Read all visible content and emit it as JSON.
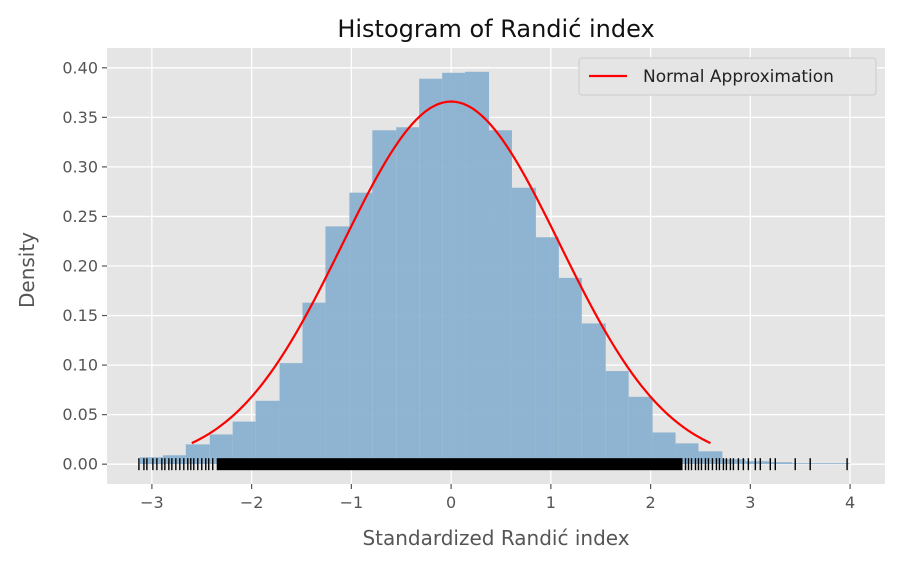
{
  "chart_data": {
    "type": "bar",
    "title": "Histogram of Randić index",
    "xlabel": "Standardized Randić index",
    "ylabel": "Density",
    "xlim": [
      -3.45,
      4.35
    ],
    "ylim": [
      -0.02,
      0.42
    ],
    "x_ticks": [
      -3,
      -2,
      -1,
      0,
      1,
      2,
      3,
      4
    ],
    "x_tick_labels": [
      "−3",
      "−2",
      "−1",
      "0",
      "1",
      "2",
      "3",
      "4"
    ],
    "y_ticks": [
      0.0,
      0.05,
      0.1,
      0.15,
      0.2,
      0.25,
      0.3,
      0.35,
      0.4
    ],
    "y_tick_labels": [
      "0.00",
      "0.05",
      "0.10",
      "0.15",
      "0.20",
      "0.25",
      "0.30",
      "0.35",
      "0.40"
    ],
    "grid": true,
    "legend": {
      "placement": "top-right",
      "entries": [
        "Normal Approximation"
      ]
    },
    "histogram": {
      "name": "",
      "color": "#8ab1d0",
      "bins": [
        {
          "x0": -3.12,
          "x1": -2.89,
          "density": 0.007
        },
        {
          "x0": -2.89,
          "x1": -2.66,
          "density": 0.009
        },
        {
          "x0": -2.66,
          "x1": -2.42,
          "density": 0.02
        },
        {
          "x0": -2.42,
          "x1": -2.19,
          "density": 0.03
        },
        {
          "x0": -2.19,
          "x1": -1.96,
          "density": 0.043
        },
        {
          "x0": -1.96,
          "x1": -1.72,
          "density": 0.064
        },
        {
          "x0": -1.72,
          "x1": -1.49,
          "density": 0.102
        },
        {
          "x0": -1.49,
          "x1": -1.26,
          "density": 0.163
        },
        {
          "x0": -1.26,
          "x1": -1.02,
          "density": 0.24
        },
        {
          "x0": -1.02,
          "x1": -0.79,
          "density": 0.274
        },
        {
          "x0": -0.79,
          "x1": -0.55,
          "density": 0.337
        },
        {
          "x0": -0.55,
          "x1": -0.32,
          "density": 0.34
        },
        {
          "x0": -0.32,
          "x1": -0.09,
          "density": 0.389
        },
        {
          "x0": -0.09,
          "x1": 0.14,
          "density": 0.395
        },
        {
          "x0": 0.14,
          "x1": 0.38,
          "density": 0.396
        },
        {
          "x0": 0.38,
          "x1": 0.61,
          "density": 0.337
        },
        {
          "x0": 0.61,
          "x1": 0.85,
          "density": 0.279
        },
        {
          "x0": 0.85,
          "x1": 1.08,
          "density": 0.229
        },
        {
          "x0": 1.08,
          "x1": 1.31,
          "density": 0.188
        },
        {
          "x0": 1.31,
          "x1": 1.55,
          "density": 0.142
        },
        {
          "x0": 1.55,
          "x1": 1.78,
          "density": 0.094
        },
        {
          "x0": 1.78,
          "x1": 2.02,
          "density": 0.068
        },
        {
          "x0": 2.02,
          "x1": 2.25,
          "density": 0.032
        },
        {
          "x0": 2.25,
          "x1": 2.48,
          "density": 0.021
        },
        {
          "x0": 2.48,
          "x1": 2.72,
          "density": 0.013
        },
        {
          "x0": 2.72,
          "x1": 2.95,
          "density": 0.005
        },
        {
          "x0": 2.95,
          "x1": 3.19,
          "density": 0.003
        },
        {
          "x0": 3.19,
          "x1": 3.42,
          "density": 0.002
        },
        {
          "x0": 3.42,
          "x1": 3.65,
          "density": 0.001
        },
        {
          "x0": 3.65,
          "x1": 3.89,
          "density": 0.001
        },
        {
          "x0": 3.89,
          "x1": 4.0,
          "density": 0.001
        }
      ]
    },
    "normal_curve": {
      "name": "Normal Approximation",
      "color": "#ff0000",
      "x_range": [
        -2.6,
        2.6
      ],
      "peak_density": 0.366,
      "mean": 0.0,
      "sd": 1.09
    },
    "rug": {
      "color": "#000000",
      "dense_range": [
        -2.35,
        2.32
      ],
      "values": [
        -3.13,
        -3.08,
        -3.05,
        -2.99,
        -2.95,
        -2.9,
        -2.87,
        -2.83,
        -2.8,
        -2.76,
        -2.72,
        -2.68,
        -2.64,
        -2.61,
        -2.58,
        -2.54,
        -2.5,
        -2.46,
        -2.43,
        -2.39,
        2.35,
        2.38,
        2.41,
        2.45,
        2.48,
        2.51,
        2.55,
        2.58,
        2.62,
        2.66,
        2.69,
        2.73,
        2.76,
        2.8,
        2.83,
        2.88,
        2.93,
        2.98,
        3.05,
        3.1,
        3.2,
        3.25,
        3.45,
        3.6,
        3.97
      ]
    }
  }
}
